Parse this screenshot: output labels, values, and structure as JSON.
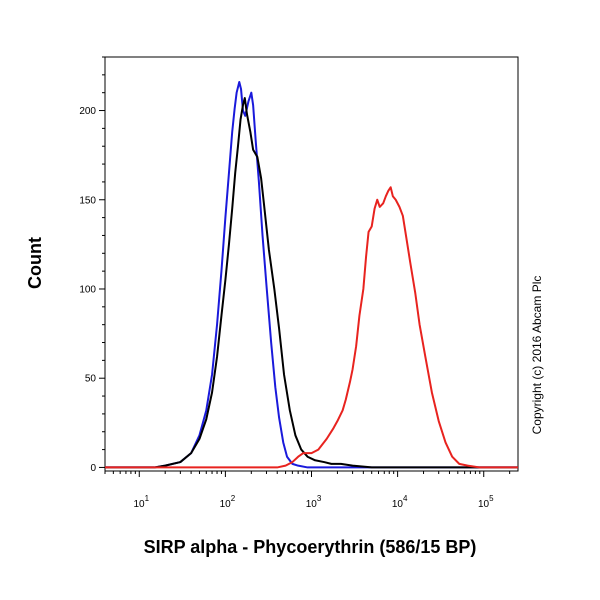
{
  "chart_data": {
    "type": "line",
    "title": "",
    "xlabel": "SIRP alpha - Phycoerythrin (586/15 BP)",
    "ylabel": "Count",
    "x_scale": "log",
    "xlim": [
      4,
      250000
    ],
    "ylim": [
      -2,
      230
    ],
    "grid": false,
    "legend": "none",
    "x_ticks": [
      {
        "value": 10,
        "mantissa": "10",
        "exp": "1"
      },
      {
        "value": 100,
        "mantissa": "10",
        "exp": "2"
      },
      {
        "value": 1000,
        "mantissa": "10",
        "exp": "3"
      },
      {
        "value": 10000,
        "mantissa": "10",
        "exp": "4"
      },
      {
        "value": 100000,
        "mantissa": "10",
        "exp": "5"
      }
    ],
    "y_ticks": [
      0,
      50,
      100,
      150,
      200
    ],
    "annotation": "Copyright (c) 2016 Abcam Plc",
    "series": [
      {
        "color": "#1a1adb",
        "points": [
          [
            4,
            0
          ],
          [
            15,
            0
          ],
          [
            20,
            1
          ],
          [
            30,
            3
          ],
          [
            40,
            8
          ],
          [
            50,
            18
          ],
          [
            60,
            32
          ],
          [
            70,
            52
          ],
          [
            80,
            80
          ],
          [
            90,
            110
          ],
          [
            100,
            140
          ],
          [
            110,
            165
          ],
          [
            120,
            188
          ],
          [
            128,
            201
          ],
          [
            135,
            210
          ],
          [
            145,
            216
          ],
          [
            152,
            212
          ],
          [
            160,
            200
          ],
          [
            170,
            197
          ],
          [
            185,
            205
          ],
          [
            200,
            210
          ],
          [
            210,
            203
          ],
          [
            225,
            183
          ],
          [
            245,
            160
          ],
          [
            270,
            130
          ],
          [
            300,
            102
          ],
          [
            340,
            70
          ],
          [
            380,
            45
          ],
          [
            420,
            28
          ],
          [
            470,
            14
          ],
          [
            520,
            6
          ],
          [
            600,
            2
          ],
          [
            700,
            1
          ],
          [
            900,
            0
          ],
          [
            1500,
            0
          ],
          [
            250000,
            0
          ]
        ]
      },
      {
        "color": "#000000",
        "points": [
          [
            4,
            0
          ],
          [
            15,
            0
          ],
          [
            20,
            1
          ],
          [
            30,
            3
          ],
          [
            40,
            8
          ],
          [
            50,
            16
          ],
          [
            60,
            27
          ],
          [
            70,
            42
          ],
          [
            80,
            62
          ],
          [
            90,
            85
          ],
          [
            100,
            105
          ],
          [
            110,
            125
          ],
          [
            120,
            145
          ],
          [
            130,
            165
          ],
          [
            140,
            180
          ],
          [
            150,
            195
          ],
          [
            160,
            203
          ],
          [
            168,
            207
          ],
          [
            178,
            198
          ],
          [
            195,
            188
          ],
          [
            210,
            178
          ],
          [
            235,
            174
          ],
          [
            260,
            162
          ],
          [
            280,
            148
          ],
          [
            320,
            122
          ],
          [
            370,
            100
          ],
          [
            420,
            78
          ],
          [
            480,
            52
          ],
          [
            560,
            32
          ],
          [
            650,
            18
          ],
          [
            760,
            10
          ],
          [
            900,
            6
          ],
          [
            1100,
            4
          ],
          [
            1400,
            3
          ],
          [
            1700,
            2
          ],
          [
            2200,
            2
          ],
          [
            3000,
            1
          ],
          [
            5000,
            0
          ],
          [
            250000,
            0
          ]
        ]
      },
      {
        "color": "#e8231f",
        "points": [
          [
            4,
            0
          ],
          [
            200,
            0
          ],
          [
            400,
            0
          ],
          [
            500,
            1
          ],
          [
            600,
            3
          ],
          [
            700,
            6
          ],
          [
            800,
            8
          ],
          [
            1000,
            8
          ],
          [
            1200,
            10
          ],
          [
            1500,
            16
          ],
          [
            1800,
            22
          ],
          [
            2000,
            26
          ],
          [
            2300,
            32
          ],
          [
            2500,
            38
          ],
          [
            2800,
            48
          ],
          [
            3000,
            55
          ],
          [
            3300,
            68
          ],
          [
            3600,
            85
          ],
          [
            4000,
            100
          ],
          [
            4300,
            118
          ],
          [
            4600,
            132
          ],
          [
            5000,
            135
          ],
          [
            5400,
            145
          ],
          [
            5800,
            150
          ],
          [
            6200,
            146
          ],
          [
            6800,
            148
          ],
          [
            7300,
            152
          ],
          [
            7800,
            155
          ],
          [
            8300,
            157
          ],
          [
            8800,
            152
          ],
          [
            9500,
            150
          ],
          [
            10500,
            146
          ],
          [
            11500,
            141
          ],
          [
            12500,
            130
          ],
          [
            14000,
            115
          ],
          [
            16000,
            98
          ],
          [
            18000,
            80
          ],
          [
            21000,
            62
          ],
          [
            25000,
            42
          ],
          [
            30000,
            26
          ],
          [
            36000,
            14
          ],
          [
            43000,
            6
          ],
          [
            52000,
            2
          ],
          [
            65000,
            1
          ],
          [
            90000,
            0
          ],
          [
            250000,
            0
          ]
        ]
      }
    ]
  }
}
